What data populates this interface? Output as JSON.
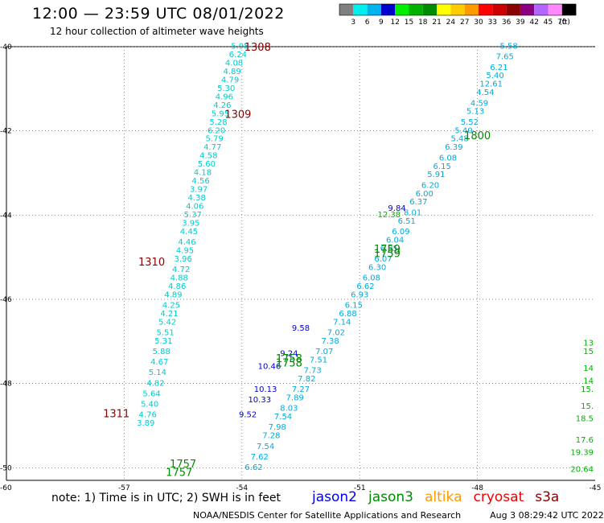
{
  "header": {
    "title": "12:00 — 23:59 UTC 08/01/2022",
    "subtitle": "12 hour collection of altimeter wave heights"
  },
  "legend": {
    "unit": "(ft)",
    "ticks": [
      "3",
      "6",
      "9",
      "12",
      "15",
      "18",
      "21",
      "24",
      "27",
      "30",
      "33",
      "36",
      "39",
      "42",
      "45",
      "70"
    ],
    "colors": [
      "#808080",
      "#00eeee",
      "#00b2ee",
      "#0000cd",
      "#00ee00",
      "#00b200",
      "#008b00",
      "#ffff00",
      "#ffcc00",
      "#ff9900",
      "#ff0000",
      "#cc0000",
      "#8b0000",
      "#8b0080",
      "#b266ff",
      "#ff88ff",
      "#000000"
    ]
  },
  "axes": {
    "x_ticks": [
      "-57",
      "-54",
      "-51",
      "-48",
      "-45"
    ],
    "x_values": [
      -57,
      -54,
      -51,
      -48,
      -45
    ],
    "y_ticks": [
      "-40",
      "-42",
      "-44",
      "-46",
      "-48",
      "-50"
    ],
    "y_values": [
      -40,
      -42,
      -44,
      -46,
      -48,
      -50
    ],
    "corner_label": "-60",
    "xlim": [
      -60,
      -45
    ],
    "ylim": [
      -50.3,
      -40
    ]
  },
  "time_labels": [
    {
      "text": "1308",
      "lon": -53.6,
      "lat": -40.0,
      "color": "#8b0000"
    },
    {
      "text": "1309",
      "lon": -54.1,
      "lat": -41.6,
      "color": "#8b0000"
    },
    {
      "text": "1310",
      "lon": -56.3,
      "lat": -45.1,
      "color": "#8b0000"
    },
    {
      "text": "1311",
      "lon": -57.2,
      "lat": -48.7,
      "color": "#8b0000"
    },
    {
      "text": "1800",
      "lon": -48.0,
      "lat": -42.1,
      "color": "#008b00"
    },
    {
      "text": "1759",
      "lon": -50.3,
      "lat": -44.8,
      "color": "#008b00"
    },
    {
      "text": "1759",
      "lon": -50.3,
      "lat": -44.9,
      "color": "#008b00"
    },
    {
      "text": "1758",
      "lon": -52.8,
      "lat": -47.4,
      "color": "#008b00"
    },
    {
      "text": "1758",
      "lon": -52.8,
      "lat": -47.5,
      "color": "#008b00"
    },
    {
      "text": "1757",
      "lon": -55.5,
      "lat": -49.9,
      "color": "#008b00"
    },
    {
      "text": "1757",
      "lon": -55.6,
      "lat": -50.1,
      "color": "#008b00"
    }
  ],
  "track_1308": {
    "color": "#00cccc",
    "points": [
      {
        "v": "5.98",
        "lon": -54.05,
        "lat": -40.05
      },
      {
        "v": "6.24",
        "lon": -54.1,
        "lat": -40.25
      },
      {
        "v": "4.08",
        "lon": -54.2,
        "lat": -40.45
      },
      {
        "v": "4.89",
        "lon": -54.25,
        "lat": -40.65
      },
      {
        "v": "4.79",
        "lon": -54.3,
        "lat": -40.85
      },
      {
        "v": "5.30",
        "lon": -54.4,
        "lat": -41.05
      },
      {
        "v": "4.96",
        "lon": -54.45,
        "lat": -41.25
      },
      {
        "v": "4.26",
        "lon": -54.5,
        "lat": -41.45
      },
      {
        "v": "5.95",
        "lon": -54.55,
        "lat": -41.65
      },
      {
        "v": "5.28",
        "lon": -54.6,
        "lat": -41.85
      },
      {
        "v": "6.20",
        "lon": -54.65,
        "lat": -42.05
      },
      {
        "v": "5.79",
        "lon": -54.7,
        "lat": -42.25
      },
      {
        "v": "4.77",
        "lon": -54.75,
        "lat": -42.45
      },
      {
        "v": "4.58",
        "lon": -54.85,
        "lat": -42.65
      },
      {
        "v": "5.60",
        "lon": -54.9,
        "lat": -42.85
      },
      {
        "v": "4.18",
        "lon": -55.0,
        "lat": -43.05
      },
      {
        "v": "4.56",
        "lon": -55.05,
        "lat": -43.25
      },
      {
        "v": "3.97",
        "lon": -55.1,
        "lat": -43.45
      },
      {
        "v": "4.38",
        "lon": -55.15,
        "lat": -43.65
      },
      {
        "v": "4.06",
        "lon": -55.2,
        "lat": -43.85
      },
      {
        "v": "5.37",
        "lon": -55.25,
        "lat": -44.05
      },
      {
        "v": "3.95",
        "lon": -55.3,
        "lat": -44.25
      },
      {
        "v": "4.45",
        "lon": -55.35,
        "lat": -44.45
      },
      {
        "v": "4.46",
        "lon": -55.4,
        "lat": -44.7
      },
      {
        "v": "4.95",
        "lon": -55.45,
        "lat": -44.9
      },
      {
        "v": "3.96",
        "lon": -55.5,
        "lat": -45.1
      },
      {
        "v": "4.72",
        "lon": -55.55,
        "lat": -45.35
      },
      {
        "v": "4.88",
        "lon": -55.6,
        "lat": -45.55
      },
      {
        "v": "4.86",
        "lon": -55.65,
        "lat": -45.75
      },
      {
        "v": "4.89",
        "lon": -55.75,
        "lat": -45.95
      },
      {
        "v": "4.25",
        "lon": -55.8,
        "lat": -46.2
      },
      {
        "v": "4.21",
        "lon": -55.85,
        "lat": -46.4
      },
      {
        "v": "5.42",
        "lon": -55.9,
        "lat": -46.6
      },
      {
        "v": "5.51",
        "lon": -55.95,
        "lat": -46.85
      },
      {
        "v": "5.31",
        "lon": -56.0,
        "lat": -47.05
      },
      {
        "v": "5.88",
        "lon": -56.05,
        "lat": -47.3
      },
      {
        "v": "4.67",
        "lon": -56.1,
        "lat": -47.55
      },
      {
        "v": "5.14",
        "lon": -56.15,
        "lat": -47.8
      },
      {
        "v": "4.82",
        "lon": -56.2,
        "lat": -48.05
      },
      {
        "v": "5.64",
        "lon": -56.3,
        "lat": -48.3
      },
      {
        "v": "5.40",
        "lon": -56.35,
        "lat": -48.55
      },
      {
        "v": "4.76",
        "lon": -56.4,
        "lat": -48.8
      },
      {
        "v": "3.89",
        "lon": -56.45,
        "lat": -49.0
      }
    ]
  },
  "track_1800": {
    "color": "#00aadd",
    "points": [
      {
        "v": "5.58",
        "lon": -47.2,
        "lat": -40.05
      },
      {
        "v": "7.65",
        "lon": -47.3,
        "lat": -40.3
      },
      {
        "v": "6.21",
        "lon": -47.45,
        "lat": -40.55
      },
      {
        "v": "5.40",
        "lon": -47.55,
        "lat": -40.75
      },
      {
        "v": "12.61",
        "lon": -47.65,
        "lat": -40.95
      },
      {
        "v": "4.54",
        "lon": -47.8,
        "lat": -41.15
      },
      {
        "v": "4.59",
        "lon": -47.95,
        "lat": -41.4
      },
      {
        "v": "5.13",
        "lon": -48.05,
        "lat": -41.6
      },
      {
        "v": "5.52",
        "lon": -48.2,
        "lat": -41.85
      },
      {
        "v": "5.40",
        "lon": -48.35,
        "lat": -42.05
      },
      {
        "v": "5.48",
        "lon": -48.45,
        "lat": -42.25
      },
      {
        "v": "6.39",
        "lon": -48.6,
        "lat": -42.45
      },
      {
        "v": "6.08",
        "lon": -48.75,
        "lat": -42.7
      },
      {
        "v": "6.15",
        "lon": -48.9,
        "lat": -42.9
      },
      {
        "v": "5.91",
        "lon": -49.05,
        "lat": -43.1
      },
      {
        "v": "6.20",
        "lon": -49.2,
        "lat": -43.35
      },
      {
        "v": "6.00",
        "lon": -49.35,
        "lat": -43.55
      },
      {
        "v": "6.37",
        "lon": -49.5,
        "lat": -43.75
      },
      {
        "v": "8.01",
        "lon": -49.65,
        "lat": -44.0
      },
      {
        "v": "6.51",
        "lon": -49.8,
        "lat": -44.2
      },
      {
        "v": "6.09",
        "lon": -49.95,
        "lat": -44.45
      },
      {
        "v": "6.04",
        "lon": -50.1,
        "lat": -44.65
      },
      {
        "v": "6.85",
        "lon": -50.25,
        "lat": -44.85
      },
      {
        "v": "6.07",
        "lon": -50.4,
        "lat": -45.1
      },
      {
        "v": "6.30",
        "lon": -50.55,
        "lat": -45.3
      },
      {
        "v": "6.08",
        "lon": -50.7,
        "lat": -45.55
      },
      {
        "v": "6.62",
        "lon": -50.85,
        "lat": -45.75
      },
      {
        "v": "6.93",
        "lon": -51.0,
        "lat": -45.95
      },
      {
        "v": "6.15",
        "lon": -51.15,
        "lat": -46.2
      },
      {
        "v": "6.88",
        "lon": -51.3,
        "lat": -46.4
      },
      {
        "v": "7.14",
        "lon": -51.45,
        "lat": -46.6
      },
      {
        "v": "7.02",
        "lon": -51.6,
        "lat": -46.85
      },
      {
        "v": "7.38",
        "lon": -51.75,
        "lat": -47.05
      },
      {
        "v": "7.07",
        "lon": -51.9,
        "lat": -47.3
      },
      {
        "v": "7.51",
        "lon": -52.05,
        "lat": -47.5
      },
      {
        "v": "7.73",
        "lon": -52.2,
        "lat": -47.75
      },
      {
        "v": "7.82",
        "lon": -52.35,
        "lat": -47.95
      },
      {
        "v": "7.27",
        "lon": -52.5,
        "lat": -48.2
      },
      {
        "v": "7.89",
        "lon": -52.65,
        "lat": -48.4
      },
      {
        "v": "8.03",
        "lon": -52.8,
        "lat": -48.65
      },
      {
        "v": "7.54",
        "lon": -52.95,
        "lat": -48.85
      },
      {
        "v": "7.98",
        "lon": -53.1,
        "lat": -49.1
      },
      {
        "v": "7.28",
        "lon": -53.25,
        "lat": -49.3
      },
      {
        "v": "7.54",
        "lon": -53.4,
        "lat": -49.55
      },
      {
        "v": "7.62",
        "lon": -53.55,
        "lat": -49.8
      },
      {
        "v": "6.62",
        "lon": -53.7,
        "lat": -50.05
      }
    ]
  },
  "track_1800_highlights": {
    "items": [
      {
        "v": "9.84",
        "lon": -50.05,
        "lat": -43.9,
        "color": "#0000cd"
      },
      {
        "v": "12.38",
        "lon": -50.25,
        "lat": -44.05,
        "color": "#00b200"
      },
      {
        "v": "9.58",
        "lon": -52.5,
        "lat": -46.75,
        "color": "#0000cd"
      },
      {
        "v": "9.24",
        "lon": -52.8,
        "lat": -47.35,
        "color": "#0000cd"
      },
      {
        "v": "10.46",
        "lon": -53.3,
        "lat": -47.65,
        "color": "#0000cd"
      },
      {
        "v": "10.13",
        "lon": -53.4,
        "lat": -48.2,
        "color": "#0000cd"
      },
      {
        "v": "10.33",
        "lon": -53.55,
        "lat": -48.45,
        "color": "#0000cd"
      },
      {
        "v": "9.52",
        "lon": -53.85,
        "lat": -48.8,
        "color": "#0000cd"
      }
    ]
  },
  "right_edge_labels": {
    "color": "#00b200",
    "items": [
      {
        "v": "13",
        "lat": -47.1
      },
      {
        "v": "15",
        "lat": -47.3
      },
      {
        "v": "14",
        "lat": -47.7
      },
      {
        "v": "14",
        "lat": -48.0
      },
      {
        "v": "15.",
        "lat": -48.2
      },
      {
        "v": "15.",
        "lat": -48.6
      },
      {
        "v": "18.5",
        "lat": -48.9
      },
      {
        "v": "17.6",
        "lat": -49.4
      },
      {
        "v": "19.39",
        "lat": -49.7
      },
      {
        "v": "20.64",
        "lat": -50.1
      }
    ]
  },
  "footer": {
    "note": "note: 1) Time is in UTC; 2) SWH is in feet",
    "satellites": [
      {
        "name": "jason2",
        "color": "#0000ee"
      },
      {
        "name": "jason3",
        "color": "#008b00"
      },
      {
        "name": "altika",
        "color": "#ff9900"
      },
      {
        "name": "cryosat",
        "color": "#ee0000"
      },
      {
        "name": "s3a",
        "color": "#8b0000"
      }
    ],
    "credit": "NOAA/NESDIS Center for Satellite Applications and Research",
    "timestamp": "Aug  3 08:29:42 UTC 2022"
  }
}
